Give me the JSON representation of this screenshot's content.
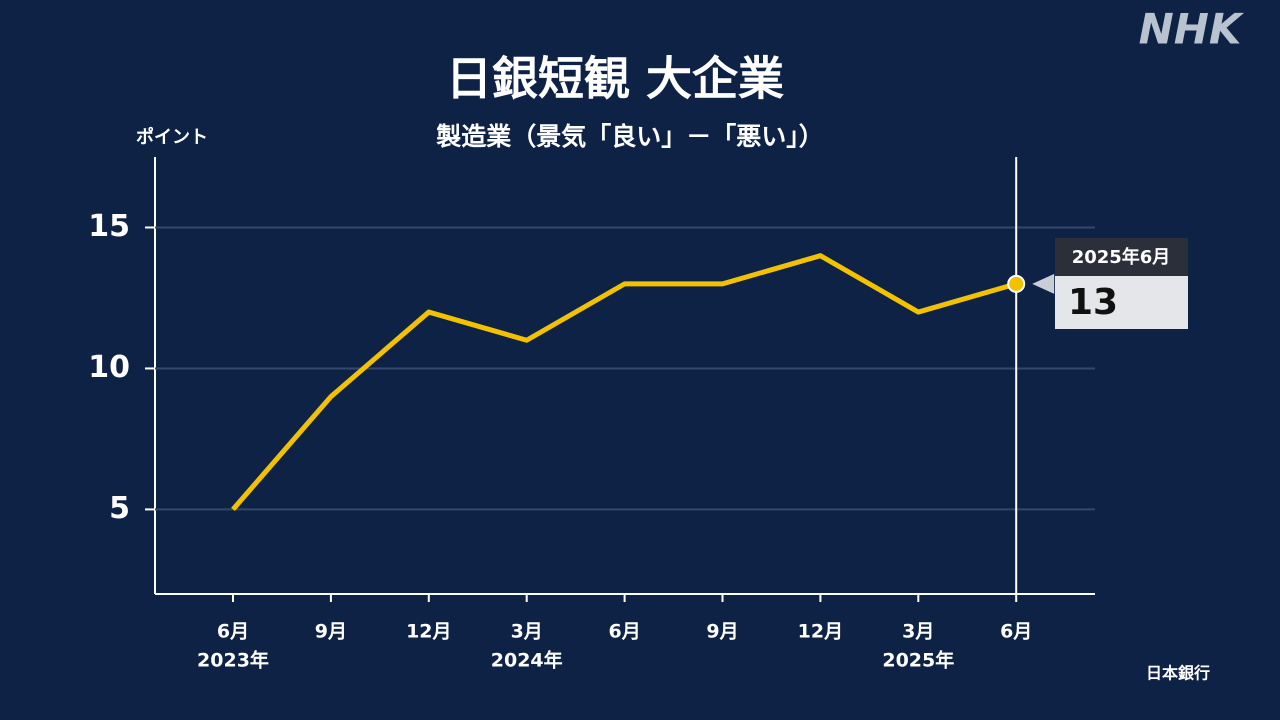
{
  "brand": "NHK",
  "source": "日本銀行",
  "chart_data": {
    "type": "line",
    "title": "日銀短観 大企業",
    "subtitle": "製造業（景気「良い」－「悪い」）",
    "y_label": "ポイント",
    "categories": [
      "6月",
      "9月",
      "12月",
      "3月",
      "6月",
      "9月",
      "12月",
      "3月",
      "6月"
    ],
    "year_labels": [
      "2023年",
      null,
      null,
      "2024年",
      null,
      null,
      null,
      "2025年",
      null
    ],
    "series": [
      {
        "color": "#f2c200",
        "values": [
          5,
          9,
          12,
          11,
          13,
          13,
          14,
          12,
          13
        ]
      }
    ],
    "ylim": [
      2,
      17.5
    ],
    "yticks": [
      5,
      10,
      15
    ],
    "grid": true,
    "callout_label": "2025年6月"
  }
}
